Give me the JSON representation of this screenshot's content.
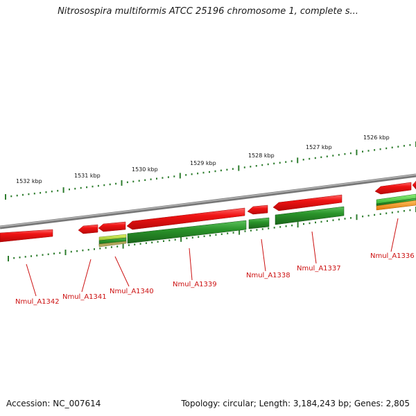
{
  "title": "Nitrosospira multiformis ATCC 25196 chromosome 1, complete s...",
  "footer": {
    "accession": "Accession: NC_007614",
    "summary": "Topology: circular; Length: 3,184,243 bp; Genes: 2,805"
  },
  "ruler_labels": [
    "1532 kbp",
    "1531 kbp",
    "1530 kbp",
    "1529 kbp",
    "1528 kbp",
    "1527 kbp",
    "1526 kbp"
  ],
  "gene_labels": [
    "Nmul_A1342",
    "Nmul_A1341",
    "Nmul_A1340",
    "Nmul_A1339",
    "Nmul_A1338",
    "Nmul_A1337",
    "Nmul_A1336"
  ],
  "colors": {
    "forward_gene": "#e01010",
    "reverse_gene": "#1e8a1e",
    "backbone": "#888888",
    "tick": "#2e7d2e",
    "label": "#cc1010",
    "yellow_green": "#b6d83a",
    "orange": "#f09a1a"
  }
}
